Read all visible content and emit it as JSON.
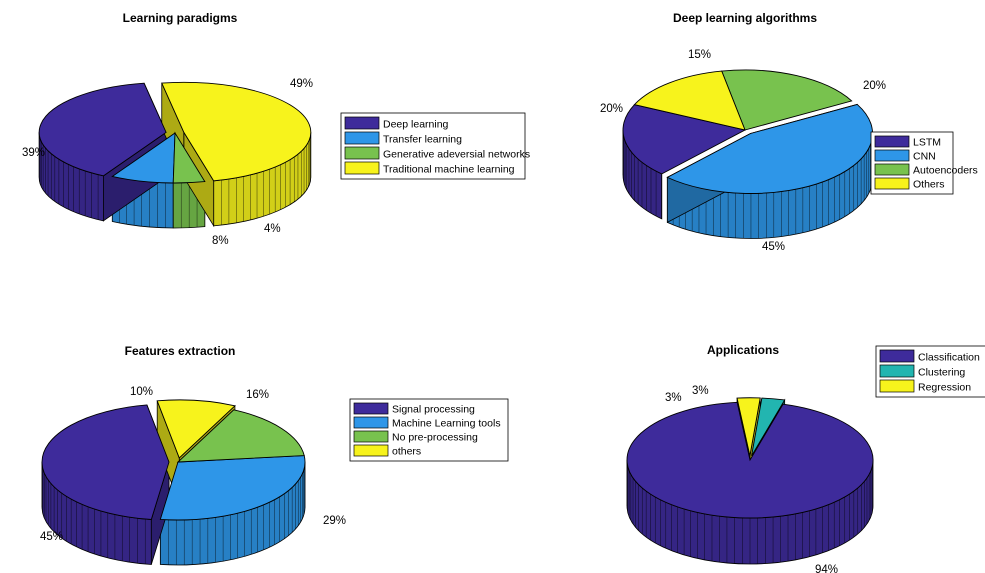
{
  "chart_data": [
    {
      "type": "pie",
      "title": "Learning paradigms",
      "categories": [
        "Deep learning",
        "Transfer learning",
        "Generative adeversial networks",
        "Traditional machine learning"
      ],
      "values": [
        39,
        8,
        4,
        49
      ],
      "labels": [
        "39%",
        "8%",
        "4%",
        "49%"
      ],
      "colors": [
        "#3e2b9b",
        "#2e96e8",
        "#78c24e",
        "#f7f31c"
      ],
      "exploded": [
        true,
        false,
        false,
        true
      ],
      "style": "3d",
      "legend": "right"
    },
    {
      "type": "pie",
      "title": "Deep learning algorithms",
      "categories": [
        "LSTM",
        "CNN",
        "Autoencoders",
        "Others"
      ],
      "values": [
        20,
        45,
        20,
        15
      ],
      "labels": [
        "20%",
        "45%",
        "20%",
        "15%"
      ],
      "colors": [
        "#3e2b9b",
        "#2e96e8",
        "#78c24e",
        "#f7f31c"
      ],
      "exploded": [
        false,
        true,
        false,
        false
      ],
      "style": "3d",
      "legend": "right"
    },
    {
      "type": "pie",
      "title": "Features extraction",
      "categories": [
        "Signal processing",
        "Machine Learning tools",
        "No pre-processing",
        "others"
      ],
      "values": [
        45,
        29,
        16,
        10
      ],
      "labels": [
        "45%",
        "29%",
        "16%",
        "10%"
      ],
      "colors": [
        "#3e2b9b",
        "#2e96e8",
        "#78c24e",
        "#f7f31c"
      ],
      "exploded": [
        true,
        false,
        false,
        true
      ],
      "style": "3d",
      "legend": "right"
    },
    {
      "type": "pie",
      "title": "Applications",
      "categories": [
        "Classification",
        "Clustering",
        "Regression"
      ],
      "values": [
        94,
        3,
        3
      ],
      "labels": [
        "94%",
        "3%",
        "3%"
      ],
      "colors": [
        "#3e2b9b",
        "#22b5b0",
        "#f7f31c"
      ],
      "exploded": [
        false,
        true,
        true
      ],
      "style": "3d",
      "legend": "top-right"
    }
  ]
}
